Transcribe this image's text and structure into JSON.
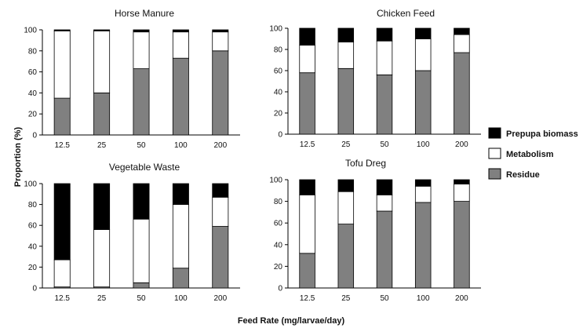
{
  "figure": {
    "ylabel": "Proportion (%)",
    "xlabel": "Feed Rate (mg/larvae/day)"
  },
  "legend": {
    "placement": "right",
    "items": [
      {
        "label": "Prepupa biomass",
        "color": "#000000"
      },
      {
        "label": "Metabolism",
        "color": "#ffffff"
      },
      {
        "label": "Residue",
        "color": "#808080"
      }
    ]
  },
  "chart_data": [
    {
      "type": "bar",
      "stacked": true,
      "title": "Horse Manure",
      "categories": [
        "12.5",
        "25",
        "50",
        "100",
        "200"
      ],
      "yticks": [
        "0",
        "20",
        "40",
        "60",
        "80",
        "100"
      ],
      "ylim": [
        0,
        100
      ],
      "series": [
        {
          "name": "Residue",
          "color": "#808080",
          "values": [
            35,
            40,
            63,
            73,
            80
          ]
        },
        {
          "name": "Metabolism",
          "color": "#ffffff",
          "values": [
            64,
            59,
            35,
            25,
            18
          ]
        },
        {
          "name": "Prepupa biomass",
          "color": "#000000",
          "values": [
            1,
            1,
            2,
            2,
            2
          ]
        }
      ]
    },
    {
      "type": "bar",
      "stacked": true,
      "title": "Chicken Feed",
      "categories": [
        "12.5",
        "25",
        "50",
        "100",
        "200"
      ],
      "yticks": [
        "0",
        "20",
        "40",
        "60",
        "80",
        "100"
      ],
      "ylim": [
        0,
        100
      ],
      "series": [
        {
          "name": "Residue",
          "color": "#808080",
          "values": [
            58,
            62,
            56,
            60,
            77
          ]
        },
        {
          "name": "Metabolism",
          "color": "#ffffff",
          "values": [
            26,
            25,
            32,
            30,
            17
          ]
        },
        {
          "name": "Prepupa biomass",
          "color": "#000000",
          "values": [
            16,
            13,
            12,
            10,
            6
          ]
        }
      ]
    },
    {
      "type": "bar",
      "stacked": true,
      "title": "Vegetable Waste",
      "categories": [
        "12.5",
        "25",
        "50",
        "100",
        "200"
      ],
      "yticks": [
        "0",
        "20",
        "40",
        "60",
        "80",
        "100"
      ],
      "ylim": [
        0,
        100
      ],
      "series": [
        {
          "name": "Residue",
          "color": "#808080",
          "values": [
            1,
            1,
            5,
            19,
            59
          ]
        },
        {
          "name": "Metabolism",
          "color": "#ffffff",
          "values": [
            26,
            55,
            61,
            61,
            28
          ]
        },
        {
          "name": "Prepupa biomass",
          "color": "#000000",
          "values": [
            73,
            44,
            34,
            20,
            13
          ]
        }
      ]
    },
    {
      "type": "bar",
      "stacked": true,
      "title": "Tofu Dreg",
      "categories": [
        "12.5",
        "25",
        "50",
        "100",
        "200"
      ],
      "yticks": [
        "0",
        "20",
        "40",
        "60",
        "80",
        "100"
      ],
      "ylim": [
        0,
        100
      ],
      "series": [
        {
          "name": "Residue",
          "color": "#808080",
          "values": [
            32,
            59,
            71,
            79,
            80
          ]
        },
        {
          "name": "Metabolism",
          "color": "#ffffff",
          "values": [
            54,
            30,
            15,
            15,
            16
          ]
        },
        {
          "name": "Prepupa biomass",
          "color": "#000000",
          "values": [
            14,
            11,
            14,
            6,
            4
          ]
        }
      ]
    }
  ]
}
